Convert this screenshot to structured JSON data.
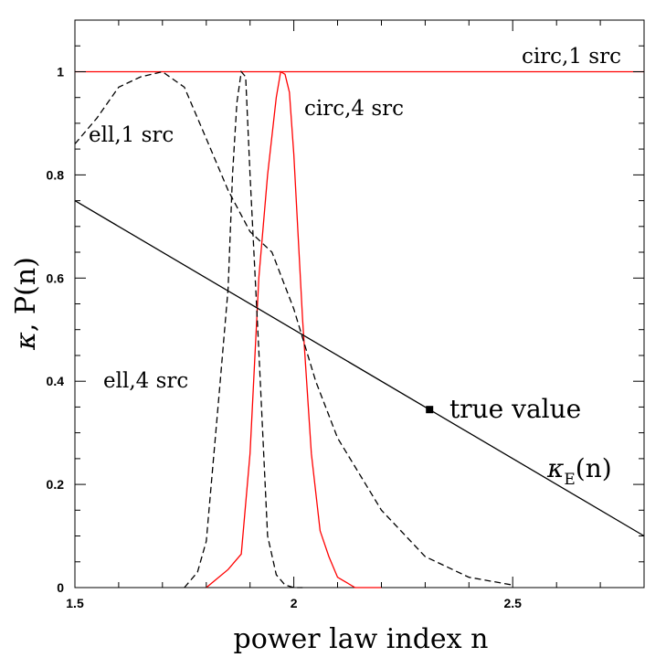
{
  "chart_data": {
    "type": "line",
    "xlabel": "power law index n",
    "ylabel_symbol": "κ",
    "ylabel_rest": ",  P(n)",
    "xlim": [
      1.5,
      2.8
    ],
    "ylim": [
      0,
      1.1
    ],
    "xticks": [
      1.5,
      2,
      2.5
    ],
    "xtick_labels": [
      "1.5",
      "2",
      "2.5"
    ],
    "yticks": [
      0,
      0.2,
      0.4,
      0.6,
      0.8,
      1
    ],
    "ytick_labels": [
      "0",
      "0.2",
      "0.4",
      "0.6",
      "0.8",
      "1"
    ],
    "grid": false,
    "series": [
      {
        "name": "circ,1 src",
        "color": "#ff0000",
        "style": "solid",
        "x": [
          1.5,
          2.8
        ],
        "y": [
          1.0,
          1.0
        ]
      },
      {
        "name": "circ,4 src",
        "color": "#ff0000",
        "style": "solid",
        "x": [
          1.8,
          1.85,
          1.88,
          1.9,
          1.92,
          1.94,
          1.96,
          1.97,
          1.98,
          1.99,
          2.0,
          2.02,
          2.04,
          2.06,
          2.08,
          2.1,
          2.14,
          2.2
        ],
        "y": [
          0,
          0.035,
          0.065,
          0.26,
          0.6,
          0.8,
          0.95,
          1.0,
          0.995,
          0.96,
          0.84,
          0.52,
          0.26,
          0.11,
          0.06,
          0.02,
          0.0,
          0.0
        ]
      },
      {
        "name": "ell,1 src",
        "color": "#000000",
        "style": "dashed",
        "x": [
          1.5,
          1.55,
          1.6,
          1.65,
          1.7,
          1.75,
          1.8,
          1.85,
          1.9,
          1.95,
          2.0,
          2.05,
          2.1,
          2.2,
          2.3,
          2.4,
          2.5
        ],
        "y": [
          0.86,
          0.91,
          0.97,
          0.99,
          1.0,
          0.97,
          0.87,
          0.77,
          0.69,
          0.65,
          0.54,
          0.4,
          0.29,
          0.15,
          0.06,
          0.02,
          0.005
        ]
      },
      {
        "name": "ell,4 src",
        "color": "#000000",
        "style": "dashed",
        "x": [
          1.75,
          1.78,
          1.8,
          1.83,
          1.85,
          1.86,
          1.87,
          1.88,
          1.89,
          1.9,
          1.92,
          1.94,
          1.96,
          1.98,
          2.0,
          2.02
        ],
        "y": [
          0,
          0.03,
          0.09,
          0.38,
          0.58,
          0.8,
          0.94,
          1.0,
          0.99,
          0.8,
          0.46,
          0.1,
          0.025,
          0.005,
          0.0,
          0.0
        ]
      },
      {
        "name": "κE(n)",
        "color": "#000000",
        "style": "solid",
        "x": [
          1.5,
          2.8
        ],
        "y": [
          0.75,
          0.1
        ]
      }
    ],
    "marker": {
      "label": "true value",
      "x": 2.31,
      "y": 0.345
    },
    "annotations": {
      "circ1": "circ,1 src",
      "circ4": "circ,4 src",
      "ell1": "ell,1 src",
      "ell4": "ell,4 src",
      "kappa_symbol": "κ",
      "kappa_sub": "E",
      "kappa_rest": "(n)",
      "true_value": "true value"
    }
  }
}
